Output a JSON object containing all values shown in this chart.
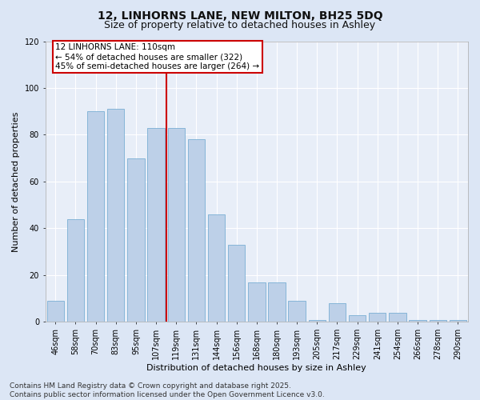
{
  "title": "12, LINHORNS LANE, NEW MILTON, BH25 5DQ",
  "subtitle": "Size of property relative to detached houses in Ashley",
  "xlabel": "Distribution of detached houses by size in Ashley",
  "ylabel": "Number of detached properties",
  "categories": [
    "46sqm",
    "58sqm",
    "70sqm",
    "83sqm",
    "95sqm",
    "107sqm",
    "119sqm",
    "131sqm",
    "144sqm",
    "156sqm",
    "168sqm",
    "180sqm",
    "193sqm",
    "205sqm",
    "217sqm",
    "229sqm",
    "241sqm",
    "254sqm",
    "266sqm",
    "278sqm",
    "290sqm"
  ],
  "values": [
    9,
    44,
    90,
    91,
    70,
    83,
    83,
    78,
    46,
    33,
    17,
    17,
    9,
    1,
    8,
    3,
    4,
    4,
    1,
    1,
    1
  ],
  "bar_color": "#bdd0e8",
  "bar_edge_color": "#7aafd4",
  "vline_x_index": 6,
  "vline_color": "#cc0000",
  "annotation_text": "12 LINHORNS LANE: 110sqm\n← 54% of detached houses are smaller (322)\n45% of semi-detached houses are larger (264) →",
  "annotation_box_color": "#ffffff",
  "annotation_box_edge_color": "#cc0000",
  "ylim": [
    0,
    120
  ],
  "yticks": [
    0,
    20,
    40,
    60,
    80,
    100,
    120
  ],
  "footer_text": "Contains HM Land Registry data © Crown copyright and database right 2025.\nContains public sector information licensed under the Open Government Licence v3.0.",
  "bg_color": "#dce6f5",
  "plot_bg_color": "#e8eef8",
  "grid_color": "#ffffff",
  "title_fontsize": 10,
  "subtitle_fontsize": 9,
  "axis_label_fontsize": 8,
  "tick_fontsize": 7,
  "footer_fontsize": 6.5,
  "annotation_fontsize": 7.5
}
